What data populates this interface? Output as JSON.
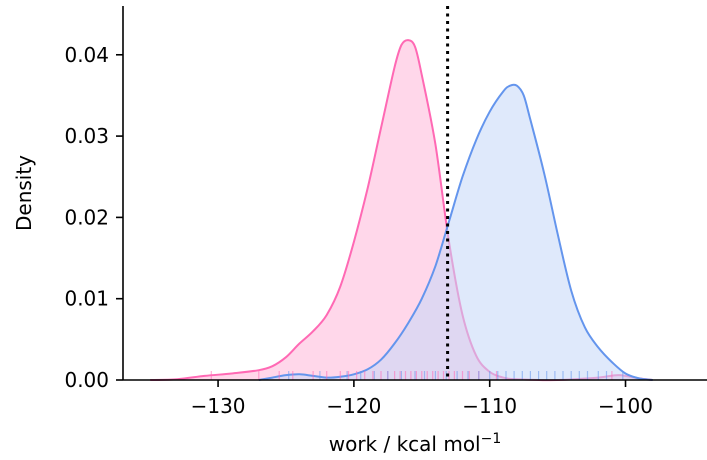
{
  "chart_data": {
    "type": "area",
    "xlabel": "work / kcal mol",
    "xlabel_superscript": "−1",
    "ylabel": "Density",
    "xlim": [
      -137,
      -94
    ],
    "ylim": [
      0,
      0.046
    ],
    "xticks": [
      {
        "value": -130,
        "label": "−130"
      },
      {
        "value": -120,
        "label": "−120"
      },
      {
        "value": -110,
        "label": "−110"
      },
      {
        "value": -100,
        "label": "−100"
      }
    ],
    "yticks": [
      {
        "value": 0.0,
        "label": "0.00"
      },
      {
        "value": 0.01,
        "label": "0.01"
      },
      {
        "value": 0.02,
        "label": "0.02"
      },
      {
        "value": 0.03,
        "label": "0.03"
      },
      {
        "value": 0.04,
        "label": "0.04"
      }
    ],
    "grid": false,
    "series": [
      {
        "color": "#ff69b4",
        "fill": "#ffb6d9",
        "points": [
          [
            -135,
            0.0
          ],
          [
            -133,
            0.0001
          ],
          [
            -131,
            0.0005
          ],
          [
            -129,
            0.0008
          ],
          [
            -127,
            0.0012
          ],
          [
            -126,
            0.0017
          ],
          [
            -125,
            0.0028
          ],
          [
            -124,
            0.0045
          ],
          [
            -123,
            0.006
          ],
          [
            -122,
            0.008
          ],
          [
            -121,
            0.0115
          ],
          [
            -120,
            0.017
          ],
          [
            -119,
            0.0235
          ],
          [
            -118,
            0.031
          ],
          [
            -117,
            0.0385
          ],
          [
            -116.5,
            0.0412
          ],
          [
            -116,
            0.0418
          ],
          [
            -115.5,
            0.041
          ],
          [
            -115,
            0.0375
          ],
          [
            -114,
            0.029
          ],
          [
            -113,
            0.017
          ],
          [
            -112,
            0.008
          ],
          [
            -111,
            0.003
          ],
          [
            -110,
            0.001
          ],
          [
            -109,
            0.0003
          ],
          [
            -108,
            0.0001
          ],
          [
            -105,
            0.0
          ],
          [
            -102,
            0.0003
          ],
          [
            -100.5,
            0.0006
          ],
          [
            -99,
            0.0002
          ],
          [
            -98,
            0.0
          ]
        ],
        "rug": [
          -130.5,
          -127,
          -125.5,
          -124.5,
          -123,
          -122,
          -121,
          -120.4,
          -119.8,
          -119.2,
          -118.6,
          -118,
          -117.5,
          -117,
          -116.6,
          -116.2,
          -115.8,
          -115.4,
          -115,
          -114.6,
          -114.2,
          -113.8,
          -113.4,
          -113,
          -112.6,
          -112,
          -111.5,
          -110.8,
          -109.5,
          -101
        ]
      },
      {
        "color": "#6495ed",
        "fill": "#c5d7f7",
        "points": [
          [
            -127,
            0.0
          ],
          [
            -126,
            0.0003
          ],
          [
            -125,
            0.0006
          ],
          [
            -124,
            0.0007
          ],
          [
            -123,
            0.0005
          ],
          [
            -122,
            0.0003
          ],
          [
            -121,
            0.0004
          ],
          [
            -120,
            0.0007
          ],
          [
            -119,
            0.0013
          ],
          [
            -118,
            0.0025
          ],
          [
            -117,
            0.0045
          ],
          [
            -116,
            0.007
          ],
          [
            -115,
            0.01
          ],
          [
            -114,
            0.014
          ],
          [
            -113,
            0.0195
          ],
          [
            -112,
            0.025
          ],
          [
            -111,
            0.0295
          ],
          [
            -110,
            0.033
          ],
          [
            -109,
            0.0355
          ],
          [
            -108.5,
            0.0362
          ],
          [
            -108,
            0.0362
          ],
          [
            -107.5,
            0.035
          ],
          [
            -107,
            0.032
          ],
          [
            -106,
            0.0255
          ],
          [
            -105,
            0.018
          ],
          [
            -104,
            0.011
          ],
          [
            -103,
            0.0065
          ],
          [
            -102,
            0.004
          ],
          [
            -101,
            0.0022
          ],
          [
            -100,
            0.0008
          ],
          [
            -99,
            0.0002
          ],
          [
            -98,
            0.0
          ]
        ],
        "rug": [
          -124.8,
          -122.5,
          -120.5,
          -119.5,
          -118.5,
          -117.5,
          -116.5,
          -115.5,
          -114.8,
          -114,
          -113.2,
          -112.4,
          -111.6,
          -110.8,
          -110,
          -109.4,
          -108.8,
          -108.2,
          -107.6,
          -107,
          -106.4,
          -105.8,
          -105.2,
          -104.6,
          -104,
          -103.4,
          -102.8,
          -102,
          -101.4,
          -100.2
        ]
      }
    ],
    "vline": {
      "x": -113.1,
      "style": "dotted",
      "color": "#000000"
    }
  }
}
